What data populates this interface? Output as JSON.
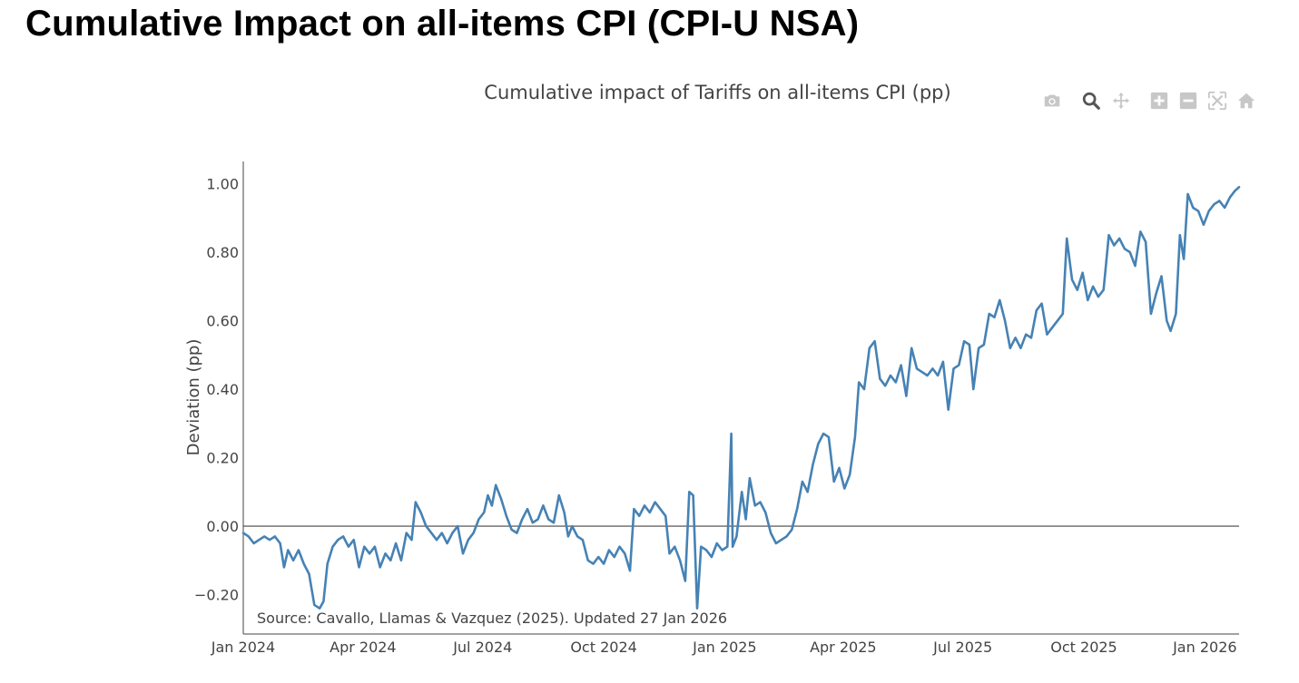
{
  "page": {
    "title": "Cumulative Impact on all-items CPI (CPI-U NSA)"
  },
  "modebar": {
    "buttons": [
      {
        "name": "camera-icon",
        "label": "Download plot as a png"
      },
      {
        "name": "zoom-icon",
        "label": "Zoom"
      },
      {
        "name": "pan-icon",
        "label": "Pan"
      },
      {
        "name": "zoom-in-icon",
        "label": "Zoom in"
      },
      {
        "name": "zoom-out-icon",
        "label": "Zoom out"
      },
      {
        "name": "autoscale-icon",
        "label": "Autoscale"
      },
      {
        "name": "home-icon",
        "label": "Reset axes"
      }
    ],
    "active": "zoom-icon"
  },
  "chart_data": {
    "type": "line",
    "title": "Cumulative impact of Tariffs on all-items CPI (pp)",
    "xlabel": "",
    "ylabel": "Deviation (pp)",
    "x_ticks": [
      "Jan 2024",
      "Apr 2024",
      "Jul 2024",
      "Oct 2024",
      "Jan 2025",
      "Apr 2025",
      "Jul 2025",
      "Oct 2025",
      "Jan 2026"
    ],
    "y_ticks": [
      "−0.20",
      "0.00",
      "0.20",
      "0.40",
      "0.60",
      "0.80",
      "1.00"
    ],
    "xlim": [
      "2024-01-01",
      "2026-01-27"
    ],
    "ylim": [
      -0.315,
      1.065
    ],
    "zero_line": true,
    "grid": false,
    "legend": "none",
    "source_note": "Source: Cavallo, Llamas & Vazquez (2025). Updated 27 Jan 2026",
    "colors": {
      "line": "#4682b4",
      "zero_line": "#444444",
      "axis": "#444444"
    },
    "series": [
      {
        "points": [
          [
            "2024-01-01",
            -0.02
          ],
          [
            "2024-01-05",
            -0.03
          ],
          [
            "2024-01-09",
            -0.05
          ],
          [
            "2024-01-13",
            -0.04
          ],
          [
            "2024-01-17",
            -0.03
          ],
          [
            "2024-01-21",
            -0.04
          ],
          [
            "2024-01-25",
            -0.03
          ],
          [
            "2024-01-29",
            -0.05
          ],
          [
            "2024-02-01",
            -0.12
          ],
          [
            "2024-02-04",
            -0.07
          ],
          [
            "2024-02-08",
            -0.1
          ],
          [
            "2024-02-12",
            -0.07
          ],
          [
            "2024-02-16",
            -0.11
          ],
          [
            "2024-02-20",
            -0.14
          ],
          [
            "2024-02-24",
            -0.23
          ],
          [
            "2024-02-28",
            -0.24
          ],
          [
            "2024-03-02",
            -0.22
          ],
          [
            "2024-03-05",
            -0.11
          ],
          [
            "2024-03-09",
            -0.06
          ],
          [
            "2024-03-13",
            -0.04
          ],
          [
            "2024-03-17",
            -0.03
          ],
          [
            "2024-03-21",
            -0.06
          ],
          [
            "2024-03-25",
            -0.04
          ],
          [
            "2024-03-29",
            -0.12
          ],
          [
            "2024-04-02",
            -0.06
          ],
          [
            "2024-04-06",
            -0.08
          ],
          [
            "2024-04-10",
            -0.06
          ],
          [
            "2024-04-14",
            -0.12
          ],
          [
            "2024-04-18",
            -0.08
          ],
          [
            "2024-04-22",
            -0.1
          ],
          [
            "2024-04-26",
            -0.05
          ],
          [
            "2024-04-30",
            -0.1
          ],
          [
            "2024-05-04",
            -0.02
          ],
          [
            "2024-05-08",
            -0.04
          ],
          [
            "2024-05-11",
            0.07
          ],
          [
            "2024-05-15",
            0.04
          ],
          [
            "2024-05-19",
            0.0
          ],
          [
            "2024-05-23",
            -0.02
          ],
          [
            "2024-05-27",
            -0.04
          ],
          [
            "2024-05-31",
            -0.02
          ],
          [
            "2024-06-04",
            -0.05
          ],
          [
            "2024-06-08",
            -0.02
          ],
          [
            "2024-06-12",
            0.0
          ],
          [
            "2024-06-16",
            -0.08
          ],
          [
            "2024-06-20",
            -0.04
          ],
          [
            "2024-06-24",
            -0.02
          ],
          [
            "2024-06-28",
            0.02
          ],
          [
            "2024-07-02",
            0.04
          ],
          [
            "2024-07-05",
            0.09
          ],
          [
            "2024-07-08",
            0.06
          ],
          [
            "2024-07-11",
            0.12
          ],
          [
            "2024-07-15",
            0.08
          ],
          [
            "2024-07-19",
            0.03
          ],
          [
            "2024-07-23",
            -0.01
          ],
          [
            "2024-07-27",
            -0.02
          ],
          [
            "2024-07-31",
            0.02
          ],
          [
            "2024-08-04",
            0.05
          ],
          [
            "2024-08-08",
            0.01
          ],
          [
            "2024-08-12",
            0.02
          ],
          [
            "2024-08-16",
            0.06
          ],
          [
            "2024-08-20",
            0.02
          ],
          [
            "2024-08-24",
            0.01
          ],
          [
            "2024-08-28",
            0.09
          ],
          [
            "2024-09-01",
            0.04
          ],
          [
            "2024-09-04",
            -0.03
          ],
          [
            "2024-09-07",
            0.0
          ],
          [
            "2024-09-11",
            -0.03
          ],
          [
            "2024-09-15",
            -0.04
          ],
          [
            "2024-09-19",
            -0.1
          ],
          [
            "2024-09-23",
            -0.11
          ],
          [
            "2024-09-27",
            -0.09
          ],
          [
            "2024-10-01",
            -0.11
          ],
          [
            "2024-10-05",
            -0.07
          ],
          [
            "2024-10-09",
            -0.09
          ],
          [
            "2024-10-13",
            -0.06
          ],
          [
            "2024-10-17",
            -0.08
          ],
          [
            "2024-10-21",
            -0.13
          ],
          [
            "2024-10-24",
            0.05
          ],
          [
            "2024-10-28",
            0.03
          ],
          [
            "2024-11-01",
            0.06
          ],
          [
            "2024-11-05",
            0.04
          ],
          [
            "2024-11-09",
            0.07
          ],
          [
            "2024-11-13",
            0.05
          ],
          [
            "2024-11-17",
            0.03
          ],
          [
            "2024-11-20",
            -0.08
          ],
          [
            "2024-11-24",
            -0.06
          ],
          [
            "2024-11-28",
            -0.1
          ],
          [
            "2024-12-02",
            -0.16
          ],
          [
            "2024-12-05",
            0.1
          ],
          [
            "2024-12-08",
            0.09
          ],
          [
            "2024-12-11",
            -0.24
          ],
          [
            "2024-12-14",
            -0.06
          ],
          [
            "2024-12-18",
            -0.07
          ],
          [
            "2024-12-22",
            -0.09
          ],
          [
            "2024-12-26",
            -0.05
          ],
          [
            "2024-12-30",
            -0.07
          ],
          [
            "2025-01-03",
            -0.06
          ],
          [
            "2025-01-06",
            0.27
          ],
          [
            "2025-01-07",
            -0.06
          ],
          [
            "2025-01-10",
            -0.03
          ],
          [
            "2025-01-14",
            0.1
          ],
          [
            "2025-01-17",
            0.02
          ],
          [
            "2025-01-20",
            0.14
          ],
          [
            "2025-01-24",
            0.06
          ],
          [
            "2025-01-28",
            0.07
          ],
          [
            "2025-02-01",
            0.04
          ],
          [
            "2025-02-05",
            -0.02
          ],
          [
            "2025-02-09",
            -0.05
          ],
          [
            "2025-02-13",
            -0.04
          ],
          [
            "2025-02-17",
            -0.03
          ],
          [
            "2025-02-21",
            -0.01
          ],
          [
            "2025-02-25",
            0.05
          ],
          [
            "2025-03-01",
            0.13
          ],
          [
            "2025-03-05",
            0.1
          ],
          [
            "2025-03-09",
            0.18
          ],
          [
            "2025-03-13",
            0.24
          ],
          [
            "2025-03-17",
            0.27
          ],
          [
            "2025-03-21",
            0.26
          ],
          [
            "2025-03-25",
            0.13
          ],
          [
            "2025-03-29",
            0.17
          ],
          [
            "2025-04-02",
            0.11
          ],
          [
            "2025-04-06",
            0.15
          ],
          [
            "2025-04-10",
            0.26
          ],
          [
            "2025-04-13",
            0.42
          ],
          [
            "2025-04-17",
            0.4
          ],
          [
            "2025-04-21",
            0.52
          ],
          [
            "2025-04-25",
            0.54
          ],
          [
            "2025-04-29",
            0.43
          ],
          [
            "2025-05-03",
            0.41
          ],
          [
            "2025-05-07",
            0.44
          ],
          [
            "2025-05-11",
            0.42
          ],
          [
            "2025-05-15",
            0.47
          ],
          [
            "2025-05-19",
            0.38
          ],
          [
            "2025-05-23",
            0.52
          ],
          [
            "2025-05-27",
            0.46
          ],
          [
            "2025-05-31",
            0.45
          ],
          [
            "2025-06-04",
            0.44
          ],
          [
            "2025-06-08",
            0.46
          ],
          [
            "2025-06-12",
            0.44
          ],
          [
            "2025-06-16",
            0.48
          ],
          [
            "2025-06-20",
            0.34
          ],
          [
            "2025-06-24",
            0.46
          ],
          [
            "2025-06-28",
            0.47
          ],
          [
            "2025-07-02",
            0.54
          ],
          [
            "2025-07-06",
            0.53
          ],
          [
            "2025-07-09",
            0.4
          ],
          [
            "2025-07-13",
            0.52
          ],
          [
            "2025-07-17",
            0.53
          ],
          [
            "2025-07-21",
            0.62
          ],
          [
            "2025-07-25",
            0.61
          ],
          [
            "2025-07-29",
            0.66
          ],
          [
            "2025-08-02",
            0.6
          ],
          [
            "2025-08-06",
            0.52
          ],
          [
            "2025-08-10",
            0.55
          ],
          [
            "2025-08-14",
            0.52
          ],
          [
            "2025-08-18",
            0.56
          ],
          [
            "2025-08-22",
            0.55
          ],
          [
            "2025-08-26",
            0.63
          ],
          [
            "2025-08-30",
            0.65
          ],
          [
            "2025-09-03",
            0.56
          ],
          [
            "2025-09-07",
            0.58
          ],
          [
            "2025-09-11",
            0.6
          ],
          [
            "2025-09-15",
            0.62
          ],
          [
            "2025-09-18",
            0.84
          ],
          [
            "2025-09-22",
            0.72
          ],
          [
            "2025-09-26",
            0.69
          ],
          [
            "2025-09-30",
            0.74
          ],
          [
            "2025-10-04",
            0.66
          ],
          [
            "2025-10-08",
            0.7
          ],
          [
            "2025-10-12",
            0.67
          ],
          [
            "2025-10-16",
            0.69
          ],
          [
            "2025-10-20",
            0.85
          ],
          [
            "2025-10-24",
            0.82
          ],
          [
            "2025-10-28",
            0.84
          ],
          [
            "2025-11-01",
            0.81
          ],
          [
            "2025-11-05",
            0.8
          ],
          [
            "2025-11-09",
            0.76
          ],
          [
            "2025-11-13",
            0.86
          ],
          [
            "2025-11-17",
            0.83
          ],
          [
            "2025-11-21",
            0.62
          ],
          [
            "2025-11-25",
            0.68
          ],
          [
            "2025-11-29",
            0.73
          ],
          [
            "2025-12-03",
            0.6
          ],
          [
            "2025-12-06",
            0.57
          ],
          [
            "2025-12-10",
            0.62
          ],
          [
            "2025-12-13",
            0.85
          ],
          [
            "2025-12-16",
            0.78
          ],
          [
            "2025-12-19",
            0.97
          ],
          [
            "2025-12-23",
            0.93
          ],
          [
            "2025-12-27",
            0.92
          ],
          [
            "2025-12-31",
            0.88
          ],
          [
            "2026-01-04",
            0.92
          ],
          [
            "2026-01-08",
            0.94
          ],
          [
            "2026-01-12",
            0.95
          ],
          [
            "2026-01-16",
            0.93
          ],
          [
            "2026-01-20",
            0.96
          ],
          [
            "2026-01-24",
            0.98
          ],
          [
            "2026-01-27",
            0.99
          ]
        ]
      }
    ]
  }
}
